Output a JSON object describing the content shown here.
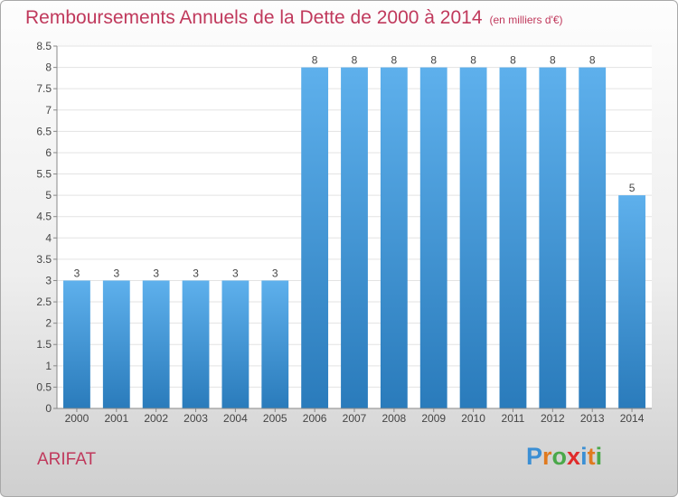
{
  "chart_data": {
    "type": "bar",
    "title": "Remboursements Annuels de la Dette de 2000 à 2014",
    "unit_label": "(en milliers d'€)",
    "categories": [
      "2000",
      "2001",
      "2002",
      "2003",
      "2004",
      "2005",
      "2006",
      "2007",
      "2008",
      "2009",
      "2010",
      "2011",
      "2012",
      "2013",
      "2014"
    ],
    "values": [
      3,
      3,
      3,
      3,
      3,
      3,
      8,
      8,
      8,
      8,
      8,
      8,
      8,
      8,
      5
    ],
    "data_labels": [
      "3",
      "3",
      "3",
      "3",
      "3",
      "3",
      "8",
      "8",
      "8",
      "8",
      "8",
      "8",
      "8",
      "8",
      "5"
    ],
    "y_ticks": [
      "0",
      "0.5",
      "1",
      "1.5",
      "2",
      "2.5",
      "3",
      "3.5",
      "4",
      "4.5",
      "5",
      "5.5",
      "6",
      "6.5",
      "7",
      "7.5",
      "8",
      "8.5"
    ],
    "ylim": [
      0,
      8.5
    ],
    "xlabel": "",
    "ylabel": "",
    "grid": true,
    "colors": {
      "bar_light": "#5eb0ec",
      "bar_dark": "#2a7bbb",
      "label_text": "#444444",
      "grid": "#e3e3e3",
      "axis": "#888888"
    }
  },
  "footer": {
    "commune": "ARIFAT",
    "logo_letters": [
      "P",
      "r",
      "o",
      "x",
      "i",
      "t",
      "i"
    ],
    "logo_colors": [
      "#3b8fd4",
      "#e07a1f",
      "#4aa84a",
      "#e02b2b",
      "#3b8fd4",
      "#e07a1f",
      "#4aa84a"
    ]
  }
}
